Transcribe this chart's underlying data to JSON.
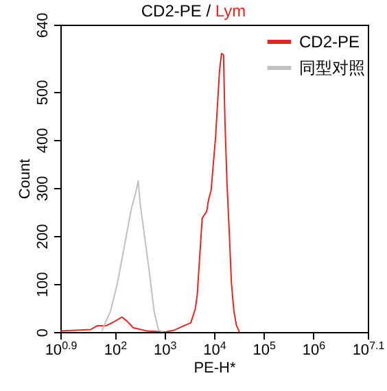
{
  "chart_data": {
    "type": "line",
    "title": "CD2-PE / Lym",
    "xlabel": "PE-H*",
    "ylabel": "Count",
    "log": "x",
    "xlim": [
      7.943,
      12589254
    ],
    "xticks": [
      {
        "value": 7.943,
        "label": "10$^{0.9}$"
      },
      {
        "value": 100,
        "label": "10$^{2}$"
      },
      {
        "value": 1000,
        "label": "10$^{3}$"
      },
      {
        "value": 10000,
        "label": "10$^{4}$"
      },
      {
        "value": 100000,
        "label": "10$^{5}$"
      },
      {
        "value": 1000000,
        "label": "10$^{6}$"
      },
      {
        "value": 12589254,
        "label": "10$^{7.1}$"
      }
    ],
    "ylim": [
      0,
      640
    ],
    "yticks": [
      0,
      100,
      200,
      300,
      400,
      500,
      640
    ],
    "grid": false,
    "legend": "top right",
    "marker": "none",
    "line_style": "solid",
    "series": [
      {
        "name": "CD2-PE",
        "color": "#e8251f",
        "x": [
          7.943,
          32,
          44,
          66,
          91,
          138,
          174,
          234,
          447,
          1047,
          1585,
          2455,
          3388,
          4169,
          4571,
          5754,
          7079,
          7762,
          8710,
          10715,
          12882,
          14125,
          15488,
          16596,
          18197,
          20417,
          22387,
          25119,
          28184,
          32359
        ],
        "values": [
          2,
          5,
          13,
          13,
          20,
          31,
          23,
          9,
          2,
          0,
          4,
          13,
          19,
          48,
          77,
          237,
          251,
          276,
          295,
          406,
          545,
          580,
          577,
          435,
          311,
          198,
          101,
          43,
          14,
          0
        ]
      },
      {
        "name": "同型对照",
        "color": "#c0c0c0",
        "x": [
          54,
          81,
          112,
          155,
          214,
          263,
          295,
          324,
          398,
          501,
          617,
          759,
          933
        ],
        "values": [
          2,
          43,
          101,
          179,
          256,
          290,
          315,
          266,
          198,
          120,
          43,
          4,
          0
        ]
      }
    ]
  }
}
